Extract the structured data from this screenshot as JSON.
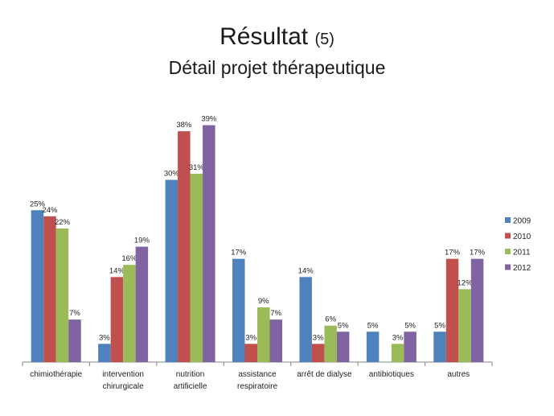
{
  "title": "Résultat",
  "title_suffix": "(5)",
  "subtitle": "Détail projet thérapeutique",
  "chart_data": {
    "type": "bar",
    "categories": [
      [
        "chimiothérapie"
      ],
      [
        "intervention",
        "chirurgicale"
      ],
      [
        "nutrition",
        "artificielle"
      ],
      [
        "assistance",
        "respiratoire"
      ],
      [
        "arrêt de dialyse"
      ],
      [
        "antibiotiques"
      ],
      [
        "autres"
      ]
    ],
    "series": [
      {
        "name": "2009",
        "color": "#4f81bd",
        "values": [
          25,
          3,
          30,
          17,
          14,
          5,
          5
        ]
      },
      {
        "name": "2010",
        "color": "#c0504d",
        "values": [
          24,
          14,
          38,
          3,
          3,
          null,
          17
        ]
      },
      {
        "name": "2011",
        "color": "#9bbb59",
        "values": [
          22,
          16,
          31,
          9,
          6,
          3,
          12
        ]
      },
      {
        "name": "2012",
        "color": "#8064a2",
        "values": [
          7,
          19,
          39,
          7,
          5,
          5,
          17
        ]
      }
    ],
    "unit": "%",
    "ylim": [
      0,
      40
    ],
    "grid": false,
    "legend_position": "right"
  }
}
